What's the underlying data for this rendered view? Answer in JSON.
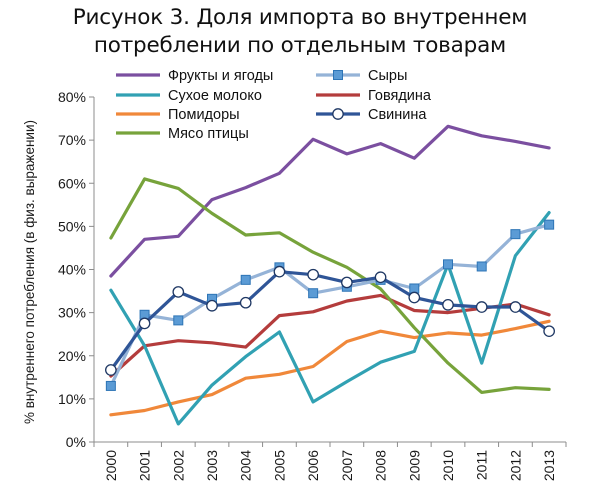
{
  "title": {
    "line1": "Рисунок 3. Доля импорта во внутреннем",
    "line2": "потреблении по отдельным товарам"
  },
  "chart_data": {
    "type": "line",
    "title": "Рисунок 3. Доля импорта во внутреннем потреблении по отдельным товарам",
    "ylabel": "% внутреннего потребления (в физ. выражении)",
    "xlabel": "",
    "x": [
      "2000",
      "2001",
      "2002",
      "2003",
      "2004",
      "2005",
      "2006",
      "2007",
      "2008",
      "2009",
      "2010",
      "2011",
      "2012",
      "2013"
    ],
    "ylim": [
      0,
      80
    ],
    "yticks": [
      "0%",
      "10%",
      "20%",
      "30%",
      "40%",
      "50%",
      "60%",
      "70%",
      "80%"
    ],
    "grid": false,
    "legend_position": "top",
    "series": [
      {
        "name": "Фрукты и ягоды",
        "color": "#7b4fa0",
        "marker": "none",
        "values": [
          38.5,
          47,
          47.7,
          56.2,
          59,
          62.3,
          70.2,
          66.8,
          69.2,
          65.8,
          73.2,
          71,
          69.7,
          68.2
        ]
      },
      {
        "name": "Сыры",
        "color": "#95b3d7",
        "marker": "square",
        "values": [
          13,
          29.5,
          28.2,
          33.2,
          37.6,
          40.5,
          34.5,
          36,
          37.6,
          35.6,
          41.2,
          40.7,
          48.2,
          50.4
        ]
      },
      {
        "name": "Сухое молоко",
        "color": "#31a1b3",
        "marker": "none",
        "values": [
          35.2,
          22.3,
          4.2,
          13.2,
          19.8,
          25.5,
          9.3,
          14,
          18.5,
          21,
          41.2,
          18.3,
          43.2,
          53.2
        ]
      },
      {
        "name": "Говядина",
        "color": "#b43c3c",
        "marker": "none",
        "values": [
          15.3,
          22.3,
          23.5,
          23,
          22,
          29.3,
          30.2,
          32.7,
          34,
          30.5,
          30,
          31,
          32,
          29.5
        ]
      },
      {
        "name": "Помидоры",
        "color": "#f0883a",
        "marker": "none",
        "values": [
          6.3,
          7.3,
          9.3,
          11,
          14.8,
          15.7,
          17.5,
          23.3,
          25.7,
          24.2,
          25.3,
          24.8,
          26.3,
          28
        ]
      },
      {
        "name": "Свинина",
        "color": "#2f5597",
        "marker": "circle",
        "values": [
          16.7,
          27.5,
          34.8,
          31.6,
          32.3,
          39.5,
          38.8,
          37,
          38.2,
          33.5,
          31.8,
          31.3,
          31.3,
          25.7
        ]
      },
      {
        "name": "Мясо птицы",
        "color": "#77a33b",
        "marker": "none",
        "values": [
          47.3,
          61,
          58.8,
          53,
          48,
          48.5,
          44,
          40.5,
          35.5,
          26.5,
          18.3,
          11.5,
          12.6,
          12.2
        ]
      }
    ]
  }
}
